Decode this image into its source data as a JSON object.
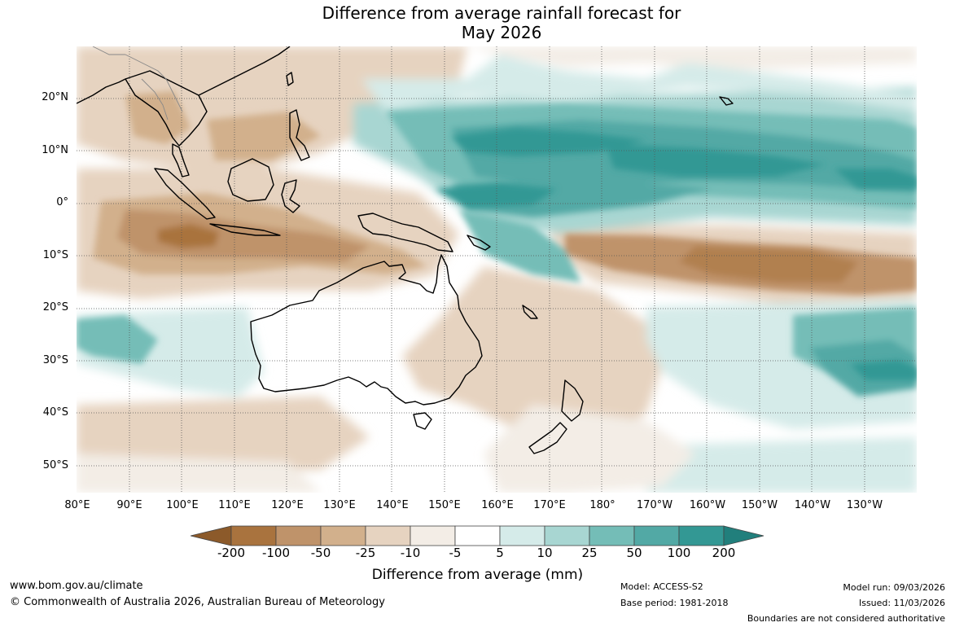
{
  "title": {
    "line1": "Difference from average rainfall forecast for",
    "line2": "May 2026"
  },
  "map": {
    "latitude_labels": [
      "20°N",
      "10°N",
      "0°",
      "10°S",
      "20°S",
      "30°S",
      "40°S",
      "50°S"
    ],
    "longitude_labels": [
      "80°E",
      "90°E",
      "100°E",
      "110°E",
      "120°E",
      "130°E",
      "140°E",
      "150°E",
      "160°E",
      "170°E",
      "180°",
      "170°W",
      "160°W",
      "150°W",
      "140°W",
      "130°W"
    ],
    "regions": [
      {
        "name": "Maritime Continent",
        "value": "dry"
      },
      {
        "name": "Indian Ocean west of Sumatra",
        "value": "dry"
      },
      {
        "name": "Equatorial Pacific north",
        "value": "wet"
      },
      {
        "name": "South Pacific 10-20S east",
        "value": "dry"
      },
      {
        "name": "Southern Ocean south-east",
        "value": "wet"
      },
      {
        "name": "Australia",
        "value": "neutral"
      }
    ]
  },
  "colorbar": {
    "title": "Difference from average (mm)",
    "ticks": [
      "-200",
      "-100",
      "-50",
      "-25",
      "-10",
      "-5",
      "5",
      "10",
      "25",
      "50",
      "100",
      "200"
    ],
    "colors": {
      "lt_-200": "#8c5a2a",
      "-200_-100": "#a9733e",
      "-100_-50": "#bf936a",
      "-50_-25": "#d2b08c",
      "-25_-10": "#e6d3c0",
      "-10_-5": "#f3ede6",
      "-5_5": "#ffffff",
      "5_10": "#d5ebe9",
      "10_25": "#a8d6d2",
      "25_50": "#74bdb7",
      "50_100": "#52a9a5",
      "100_200": "#339894",
      "gt_200": "#217f7c"
    }
  },
  "footer": {
    "website": "www.bom.gov.au/climate",
    "copyright": "© Commonwealth of Australia 2026, Australian Bureau of Meteorology",
    "model": "Model: ACCESS-S2",
    "base_period": "Base period: 1981-2018",
    "model_run": "Model run: 09/03/2026",
    "issued": "Issued: 11/03/2026",
    "boundaries": "Boundaries are not considered authoritative"
  }
}
